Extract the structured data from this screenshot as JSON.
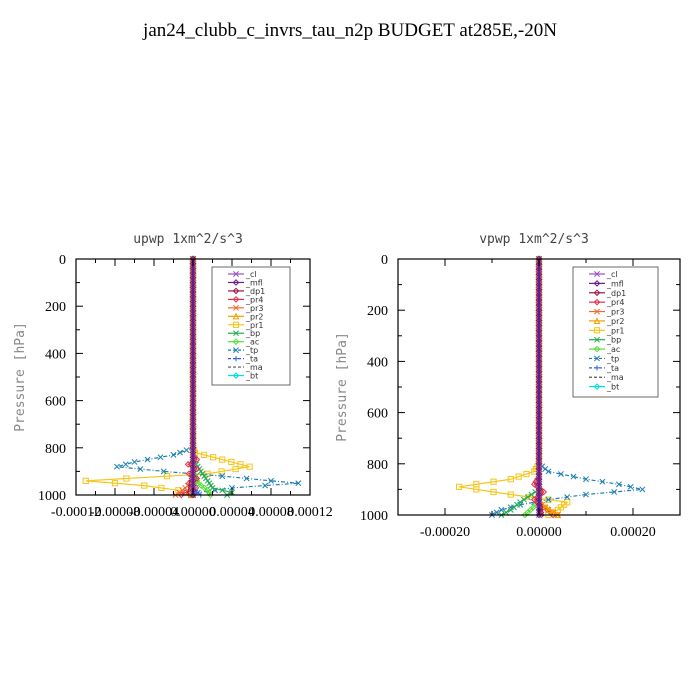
{
  "page": {
    "title": "jan24_clubb_c_invrs_tau_n2p  BUDGET at285E,-20N"
  },
  "colors": {
    "_cl": "#9a4fc4",
    "_mfl": "#6a1a8a",
    "_dp1": "#a0154b",
    "_pr4": "#e0304a",
    "_pr3": "#f06a30",
    "_pr2": "#f0a000",
    "_pr1": "#f5c518",
    "_bp": "#22aa55",
    "_ac": "#55dd33",
    "_tp": "#1a7fb0",
    "_ta": "#3060e0",
    "_ma": "#555555",
    "_bt": "#00e0e0"
  },
  "chart_data": [
    {
      "type": "line",
      "title": "upwp   1xm^2/s^3",
      "xlabel": "",
      "ylabel": "Pressure [hPa]",
      "xlim": [
        -0.00012,
        0.00012
      ],
      "ylim": [
        1000,
        0
      ],
      "xticks": [
        "-0.00012",
        "-0.00008",
        "-0.00004",
        "0.00000",
        "0.00004",
        "0.00008",
        "0.00012"
      ],
      "xtick_values": [
        -0.00012,
        -8e-05,
        -4e-05,
        0,
        4e-05,
        8e-05,
        0.00012
      ],
      "yticks": [
        "0",
        "200",
        "400",
        "600",
        "800",
        "1000"
      ],
      "ytick_values": [
        0,
        200,
        400,
        600,
        800,
        1000
      ],
      "legend_position": "top-right",
      "legend": [
        "_cl",
        "_mfl",
        "_dp1",
        "_pr4",
        "_pr3",
        "_pr2",
        "_pr1",
        "_bp",
        "_ac",
        "_tp",
        "_ta",
        "_ma",
        "_bt"
      ],
      "series": [
        {
          "name": "_pr1",
          "p": [
            0,
            800,
            820,
            850,
            880,
            910,
            940,
            960,
            980,
            1000
          ],
          "x": [
            0,
            0,
            2e-06,
            3e-05,
            5.8e-05,
            1.5e-05,
            -0.00011,
            -5e-05,
            -1.5e-05,
            0
          ]
        },
        {
          "name": "_tp",
          "p": [
            0,
            800,
            830,
            860,
            880,
            900,
            920,
            940,
            950,
            970,
            990,
            1000
          ],
          "x": [
            0,
            0,
            -2e-05,
            -6e-05,
            -7.8e-05,
            -3e-05,
            3e-05,
            8e-05,
            0.000108,
            4e-05,
            5e-06,
            0
          ]
        },
        {
          "name": "_bp",
          "p": [
            0,
            850,
            900,
            940,
            970,
            990,
            1000
          ],
          "x": [
            0,
            0,
            8e-06,
            1.5e-05,
            2e-05,
            4e-05,
            3.5e-05
          ]
        },
        {
          "name": "_ac",
          "p": [
            0,
            900,
            950,
            980,
            1000
          ],
          "x": [
            0,
            0,
            5e-06,
            1.5e-05,
            1.8e-05
          ]
        },
        {
          "name": "_pr4",
          "p": [
            0,
            830,
            850,
            870,
            890,
            910,
            930,
            950,
            970,
            990,
            1000
          ],
          "x": [
            0,
            0,
            4e-06,
            -5e-06,
            4e-06,
            -4e-06,
            4e-06,
            -4e-06,
            3e-06,
            -8e-06,
            -1.2e-05
          ]
        },
        {
          "name": "_pr3",
          "p": [
            0,
            940,
            970,
            990,
            1000
          ],
          "x": [
            0,
            0,
            -8e-06,
            -1.4e-05,
            -1.8e-05
          ]
        },
        {
          "name": "_ta",
          "p": [
            0,
            960,
            990,
            1000
          ],
          "x": [
            0,
            0,
            4e-06,
            8e-06
          ]
        },
        {
          "name": "_dp1",
          "p": [
            0,
            900,
            960,
            1000
          ],
          "x": [
            0,
            0,
            -2e-06,
            -3e-06
          ]
        },
        {
          "name": "_pr2",
          "p": [
            0,
            960,
            1000
          ],
          "x": [
            0,
            0,
            -2e-06
          ]
        },
        {
          "name": "_cl",
          "p": [
            0,
            1000
          ],
          "x": [
            0,
            0
          ]
        },
        {
          "name": "_mfl",
          "p": [
            0,
            1000
          ],
          "x": [
            0,
            0
          ]
        }
      ]
    },
    {
      "type": "line",
      "title": "vpwp   1xm^2/s^3",
      "xlabel": "",
      "ylabel": "Pressure [hPa]",
      "xlim": [
        -0.0003,
        0.0003
      ],
      "ylim": [
        1000,
        0
      ],
      "xticks": [
        "-0.00020",
        "0.00000",
        "0.00020"
      ],
      "xtick_values": [
        -0.0002,
        0,
        0.0002
      ],
      "yticks": [
        "0",
        "200",
        "400",
        "600",
        "800",
        "1000"
      ],
      "ytick_values": [
        0,
        200,
        400,
        600,
        800,
        1000
      ],
      "legend_position": "top-right",
      "legend": [
        "_cl",
        "_mfl",
        "_dp1",
        "_pr4",
        "_pr3",
        "_pr2",
        "_pr1",
        "_bp",
        "_ac",
        "_tp",
        "_ta",
        "_ma",
        "_bt"
      ],
      "series": [
        {
          "name": "_pr1",
          "p": [
            0,
            800,
            830,
            860,
            890,
            920,
            950,
            980,
            1000
          ],
          "x": [
            0,
            0,
            -1e-05,
            -6e-05,
            -0.00017,
            -6e-05,
            6e-05,
            4e-05,
            2e-05
          ]
        },
        {
          "name": "_tp",
          "p": [
            0,
            800,
            830,
            860,
            880,
            900,
            920,
            940,
            960,
            980,
            1000
          ],
          "x": [
            0,
            0,
            2e-05,
            0.0001,
            0.00017,
            0.00022,
            0.0001,
            2e-05,
            -4e-05,
            -8e-05,
            -0.0001
          ]
        },
        {
          "name": "_bp",
          "p": [
            0,
            900,
            950,
            980,
            1000
          ],
          "x": [
            0,
            0,
            -4e-05,
            -6e-05,
            -8e-05
          ]
        },
        {
          "name": "_ac",
          "p": [
            0,
            950,
            1000
          ],
          "x": [
            0,
            0,
            -3e-05
          ]
        },
        {
          "name": "_pr4",
          "p": [
            0,
            850,
            880,
            910,
            940,
            970,
            990,
            1000
          ],
          "x": [
            0,
            0,
            -1e-05,
            1e-05,
            -1e-05,
            1e-05,
            2.5e-05,
            3e-05
          ]
        },
        {
          "name": "_pr3",
          "p": [
            0,
            950,
            980,
            1000
          ],
          "x": [
            0,
            0,
            2e-05,
            4e-05
          ]
        },
        {
          "name": "_pr2",
          "p": [
            0,
            950,
            990,
            1000
          ],
          "x": [
            0,
            0,
            3e-05,
            4e-05
          ]
        },
        {
          "name": "_dp1",
          "p": [
            0,
            950,
            1000
          ],
          "x": [
            0,
            0,
            5e-06
          ]
        },
        {
          "name": "_cl",
          "p": [
            0,
            1000
          ],
          "x": [
            0,
            0
          ]
        },
        {
          "name": "_mfl",
          "p": [
            0,
            1000
          ],
          "x": [
            0,
            0
          ]
        }
      ]
    }
  ]
}
